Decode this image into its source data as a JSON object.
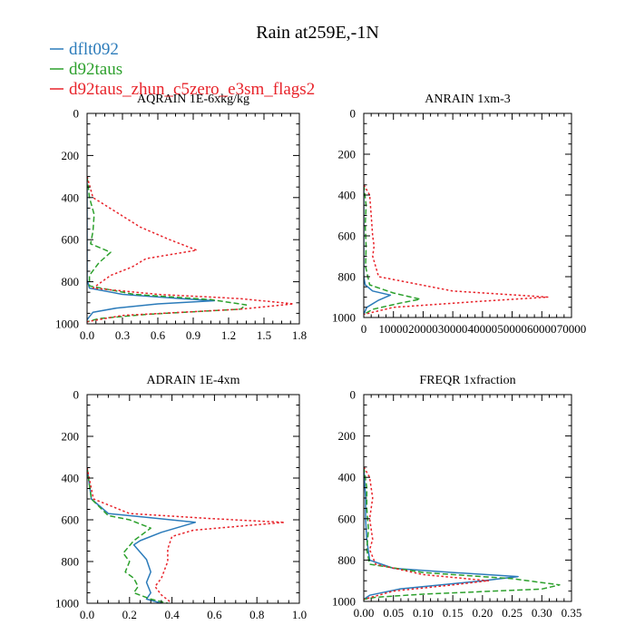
{
  "figure_title": "Rain at259E,-1N",
  "legend": [
    {
      "name": "dflt092",
      "color": "#2b7bba",
      "dash": "solid"
    },
    {
      "name": "d92taus",
      "color": "#2ca02c",
      "dash": "dashed"
    },
    {
      "name": "d92taus_zhun_c5zero_e3sm_flags2",
      "color": "#e8242b",
      "dash": "dotted"
    }
  ],
  "chart_data": [
    {
      "type": "line",
      "title": "AQRAIN  1E-6xkg/kg",
      "xlim": [
        0,
        1.8
      ],
      "ylim": [
        1000,
        0
      ],
      "xticks": [
        "0.0",
        "0.3",
        "0.6",
        "0.9",
        "1.2",
        "1.5",
        "1.8"
      ],
      "xtick_values": [
        0,
        0.3,
        0.6,
        0.9,
        1.2,
        1.5,
        1.8
      ],
      "yticks": [
        "0",
        "200",
        "400",
        "600",
        "800",
        "1000"
      ],
      "series": [
        {
          "name": "dflt092",
          "x": [
            0,
            0,
            0,
            0,
            0,
            0.02,
            0.3,
            0.8,
            1.08,
            0.6,
            0.25,
            0.05,
            0
          ],
          "y": [
            300,
            500,
            600,
            700,
            790,
            830,
            860,
            880,
            890,
            905,
            925,
            945,
            980
          ]
        },
        {
          "name": "d92taus",
          "x": [
            0,
            0.02,
            0.06,
            0.05,
            0.03,
            0.2,
            0.1,
            0.02,
            0.02,
            0.4,
            1.05,
            1.35,
            1.3,
            0.5,
            0.1,
            0
          ],
          "y": [
            300,
            400,
            480,
            560,
            620,
            660,
            710,
            770,
            820,
            860,
            885,
            910,
            930,
            955,
            975,
            990
          ]
        },
        {
          "name": "d92taus_zhun_c5zero_e3sm_flags2",
          "x": [
            0,
            0.05,
            0.25,
            0.45,
            0.7,
            0.93,
            0.5,
            0.38,
            0.2,
            0.05,
            0.6,
            1.3,
            1.75,
            1.3,
            0.3,
            0
          ],
          "y": [
            300,
            400,
            470,
            540,
            600,
            650,
            690,
            730,
            770,
            830,
            860,
            880,
            905,
            930,
            960,
            990
          ]
        }
      ]
    },
    {
      "type": "line",
      "title": "ANRAIN  1xm-3",
      "xlim": [
        0,
        70000
      ],
      "ylim": [
        1000,
        0
      ],
      "xticks": [
        "0",
        "10000",
        "20000",
        "30000",
        "40000",
        "50000",
        "60000",
        "70000"
      ],
      "xtick_values": [
        0,
        10000,
        20000,
        30000,
        40000,
        50000,
        60000,
        70000
      ],
      "yticks": [
        "0",
        "200",
        "400",
        "600",
        "800",
        "1000"
      ],
      "series": [
        {
          "name": "dflt092",
          "x": [
            0,
            0,
            0,
            0,
            500,
            3000,
            9000,
            5000,
            1000,
            0
          ],
          "y": [
            350,
            500,
            700,
            800,
            840,
            870,
            890,
            915,
            950,
            985
          ]
        },
        {
          "name": "d92taus",
          "x": [
            0,
            800,
            500,
            800,
            600,
            2000,
            10000,
            19000,
            12000,
            3000,
            0
          ],
          "y": [
            350,
            450,
            550,
            650,
            750,
            840,
            880,
            910,
            930,
            960,
            985
          ]
        },
        {
          "name": "d92taus_zhun_c5zero_e3sm_flags2",
          "x": [
            0,
            2000,
            2500,
            3000,
            3500,
            3000,
            5000,
            30000,
            62000,
            40000,
            10000,
            0
          ],
          "y": [
            350,
            400,
            500,
            600,
            650,
            700,
            800,
            870,
            900,
            920,
            950,
            985
          ]
        }
      ]
    },
    {
      "type": "line",
      "title": "ADRAIN  1E-4xm",
      "xlim": [
        0,
        1.0
      ],
      "ylim": [
        1000,
        0
      ],
      "xticks": [
        "0.0",
        "0.2",
        "0.4",
        "0.6",
        "0.8",
        "1.0"
      ],
      "xtick_values": [
        0,
        0.2,
        0.4,
        0.6,
        0.8,
        1.0
      ],
      "yticks": [
        "0",
        "200",
        "400",
        "600",
        "800",
        "1000"
      ],
      "series": [
        {
          "name": "dflt092",
          "x": [
            0,
            0.02,
            0.1,
            0.3,
            0.51,
            0.35,
            0.25,
            0.22,
            0.28,
            0.3,
            0.28,
            0.3,
            0.28,
            0.35
          ],
          "y": [
            350,
            500,
            570,
            590,
            612,
            660,
            700,
            720,
            790,
            850,
            900,
            950,
            980,
            1000
          ]
        },
        {
          "name": "d92taus",
          "x": [
            0,
            0.02,
            0.1,
            0.2,
            0.3,
            0.22,
            0.17,
            0.2,
            0.18,
            0.22,
            0.24,
            0.22,
            0.3,
            0.38
          ],
          "y": [
            350,
            500,
            580,
            600,
            640,
            700,
            760,
            800,
            850,
            880,
            920,
            950,
            980,
            1000
          ]
        },
        {
          "name": "d92taus_zhun_c5zero_e3sm_flags2",
          "x": [
            0,
            0.03,
            0.2,
            0.6,
            0.93,
            0.5,
            0.4,
            0.38,
            0.38,
            0.35,
            0.32,
            0.35,
            0.4
          ],
          "y": [
            350,
            500,
            570,
            595,
            612,
            650,
            680,
            740,
            800,
            880,
            920,
            960,
            1000
          ]
        }
      ]
    },
    {
      "type": "line",
      "title": "FREQR  1xfraction",
      "xlim": [
        0,
        0.35
      ],
      "ylim": [
        1000,
        0
      ],
      "xticks": [
        "0.00",
        "0.05",
        "0.10",
        "0.15",
        "0.20",
        "0.25",
        "0.30",
        "0.35"
      ],
      "xtick_values": [
        0,
        0.05,
        0.1,
        0.15,
        0.2,
        0.25,
        0.3,
        0.35
      ],
      "yticks": [
        "0",
        "200",
        "400",
        "600",
        "800",
        "1000"
      ],
      "series": [
        {
          "name": "dflt092",
          "x": [
            0,
            0.003,
            0.003,
            0.005,
            0.01,
            0.05,
            0.15,
            0.26,
            0.2,
            0.06,
            0.01,
            0
          ],
          "y": [
            350,
            500,
            600,
            700,
            800,
            840,
            860,
            880,
            900,
            940,
            970,
            990
          ]
        },
        {
          "name": "d92taus",
          "x": [
            0,
            0.005,
            0.005,
            0.008,
            0.005,
            0.01,
            0.1,
            0.25,
            0.33,
            0.3,
            0.1,
            0.02,
            0
          ],
          "y": [
            350,
            450,
            550,
            650,
            750,
            820,
            860,
            890,
            920,
            940,
            965,
            980,
            990
          ]
        },
        {
          "name": "d92taus_zhun_c5zero_e3sm_flags2",
          "x": [
            0,
            0.01,
            0.015,
            0.01,
            0.015,
            0.01,
            0.02,
            0.1,
            0.21,
            0.15,
            0.05,
            0
          ],
          "y": [
            350,
            400,
            500,
            600,
            700,
            750,
            820,
            870,
            900,
            920,
            950,
            990
          ]
        }
      ]
    }
  ]
}
